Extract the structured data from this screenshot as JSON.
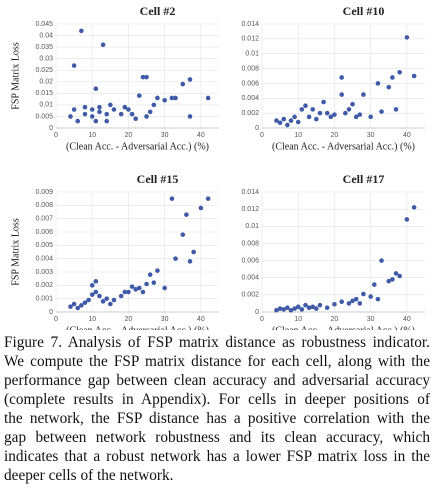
{
  "chart_data": [
    {
      "type": "scatter",
      "title": "Cell #2",
      "x_label": "(Clean Acc. - Adversarial Acc.) (%)",
      "y_label": "FSP Matrix Loss",
      "color": "#3f5ba8",
      "grid": true,
      "xlim": [
        0,
        45
      ],
      "xticks": [
        0,
        10,
        20,
        30,
        40
      ],
      "ylim": [
        0,
        0.045
      ],
      "yticks": [
        0,
        0.005,
        0.01,
        0.015,
        0.02,
        0.025,
        0.03,
        0.035,
        0.04,
        0.045
      ],
      "x": [
        4,
        5,
        5,
        6,
        7,
        8,
        8,
        10,
        10,
        11,
        11,
        12,
        12,
        13,
        14,
        14,
        15,
        16,
        18,
        19,
        20,
        21,
        22,
        23,
        24,
        25,
        25,
        26,
        27,
        28,
        30,
        32,
        33,
        35,
        37,
        37,
        42
      ],
      "values": [
        0.005,
        0.008,
        0.027,
        0.003,
        0.042,
        0.009,
        0.006,
        0.005,
        0.008,
        0.003,
        0.017,
        0.007,
        0.009,
        0.036,
        0.006,
        0.003,
        0.01,
        0.008,
        0.006,
        0.009,
        0.008,
        0.006,
        0.004,
        0.014,
        0.022,
        0.022,
        0.005,
        0.007,
        0.01,
        0.013,
        0.012,
        0.013,
        0.013,
        0.019,
        0.005,
        0.021,
        0.013
      ]
    },
    {
      "type": "scatter",
      "title": "Cell #10",
      "x_label": "(Clean Acc. - Adversarial Acc.) (%)",
      "color": "#3f5ba8",
      "grid": true,
      "xlim": [
        0,
        45
      ],
      "xticks": [
        0,
        10,
        20,
        30,
        40
      ],
      "ylim": [
        0,
        0.014
      ],
      "yticks": [
        0,
        0.002,
        0.004,
        0.006,
        0.008,
        0.01,
        0.012,
        0.014
      ],
      "x": [
        4,
        5,
        6,
        7,
        8,
        9,
        10,
        11,
        12,
        13,
        14,
        15,
        16,
        17,
        18,
        19,
        20,
        22,
        22,
        23,
        24,
        25,
        26,
        27,
        28,
        30,
        32,
        33,
        35,
        36,
        37,
        38,
        40,
        42
      ],
      "values": [
        0.001,
        0.0007,
        0.0012,
        0.0004,
        0.001,
        0.0015,
        0.0008,
        0.0025,
        0.003,
        0.0015,
        0.0025,
        0.0012,
        0.002,
        0.0035,
        0.002,
        0.0015,
        0.0018,
        0.0045,
        0.0068,
        0.002,
        0.0025,
        0.0032,
        0.0015,
        0.0018,
        0.0045,
        0.0015,
        0.006,
        0.0022,
        0.0055,
        0.0068,
        0.0025,
        0.0075,
        0.0122,
        0.007
      ]
    },
    {
      "type": "scatter",
      "title": "Cell #15",
      "x_label": "(Clean Acc. - Adversarial Acc.) (%)",
      "y_label": "FSP Matrix Loss",
      "color": "#3f5ba8",
      "grid": true,
      "xlim": [
        0,
        45
      ],
      "xticks": [
        0,
        10,
        20,
        30,
        40
      ],
      "ylim": [
        0,
        0.009
      ],
      "yticks": [
        0,
        0.001,
        0.002,
        0.003,
        0.004,
        0.005,
        0.006,
        0.007,
        0.008,
        0.009
      ],
      "x": [
        4,
        5,
        6,
        7,
        8,
        9,
        10,
        10,
        11,
        11,
        12,
        13,
        14,
        15,
        16,
        18,
        19,
        20,
        21,
        22,
        23,
        24,
        25,
        26,
        27,
        28,
        30,
        32,
        33,
        35,
        36,
        37,
        38,
        40,
        42
      ],
      "values": [
        0.0004,
        0.0006,
        0.0003,
        0.0005,
        0.0007,
        0.0009,
        0.0013,
        0.002,
        0.0015,
        0.0023,
        0.0012,
        0.0008,
        0.001,
        0.0006,
        0.0009,
        0.0012,
        0.0015,
        0.0015,
        0.0019,
        0.0017,
        0.0018,
        0.0015,
        0.0021,
        0.0028,
        0.0022,
        0.0031,
        0.0018,
        0.0085,
        0.004,
        0.0058,
        0.0073,
        0.0038,
        0.0045,
        0.0078,
        0.0085
      ]
    },
    {
      "type": "scatter",
      "title": "Cell #17",
      "x_label": "(Clean Acc. - Adversarial Acc.) (%)",
      "color": "#3f5ba8",
      "grid": true,
      "xlim": [
        0,
        45
      ],
      "xticks": [
        0,
        10,
        20,
        30,
        40
      ],
      "ylim": [
        0,
        0.014
      ],
      "yticks": [
        0,
        0.002,
        0.004,
        0.006,
        0.008,
        0.01,
        0.012,
        0.014
      ],
      "x": [
        4,
        5,
        6,
        7,
        8,
        9,
        10,
        11,
        12,
        13,
        14,
        15,
        16,
        18,
        20,
        22,
        24,
        25,
        26,
        27,
        28,
        30,
        31,
        32,
        33,
        35,
        36,
        37,
        38,
        40,
        42
      ],
      "values": [
        0.0002,
        0.0004,
        0.0003,
        0.0005,
        0.0002,
        0.0004,
        0.0006,
        0.0003,
        0.0008,
        0.0005,
        0.0006,
        0.0004,
        0.0008,
        0.0005,
        0.0009,
        0.0012,
        0.001,
        0.0013,
        0.0015,
        0.001,
        0.0021,
        0.0018,
        0.0032,
        0.0015,
        0.006,
        0.0036,
        0.0038,
        0.0045,
        0.0042,
        0.0108,
        0.0122
      ]
    }
  ],
  "caption": [
    "Figure 7. Analysis of FSP matrix distance as robustness indicator.",
    "We compute the FSP matrix distance for each cell, along with the",
    "performance gap between clean accuracy and adversarial accuracy",
    "(complete results in Appendix).  For cells in deeper positions of",
    "the network, the FSP distance has a positive correlation with the",
    "gap between network robustness and its clean accuracy, which",
    "indicates that a robust network has a lower FSP matrix loss in the",
    "deeper cells of the network."
  ]
}
